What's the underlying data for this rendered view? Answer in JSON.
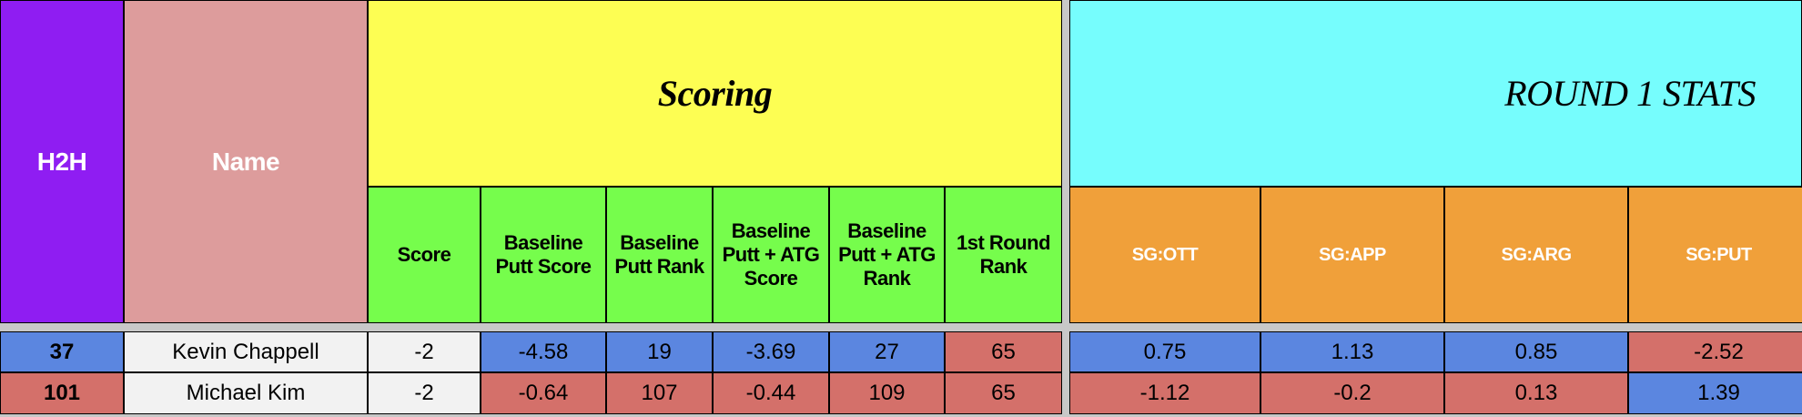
{
  "header": {
    "h2h": "H2H",
    "name": "Name",
    "scoring": "Scoring",
    "round_stats": "ROUND 1 STATS"
  },
  "columns": [
    "Score",
    "Baseline Putt Score",
    "Baseline Putt Rank",
    "Baseline Putt + ATG Score",
    "Baseline Putt + ATG Rank",
    "1st Round Rank",
    "SG:OTT",
    "SG:APP",
    "SG:ARG",
    "SG:PUT"
  ],
  "rows": [
    {
      "h2h": 37,
      "name": "Kevin Chappell",
      "values": [
        -2,
        -4.58,
        19,
        -3.69,
        27,
        65,
        0.75,
        1.13,
        0.85,
        -2.52
      ]
    },
    {
      "h2h": 101,
      "name": "Michael Kim",
      "values": [
        -2,
        -0.64,
        107,
        -0.44,
        109,
        65,
        -1.12,
        -0.2,
        0.13,
        1.39
      ]
    }
  ]
}
